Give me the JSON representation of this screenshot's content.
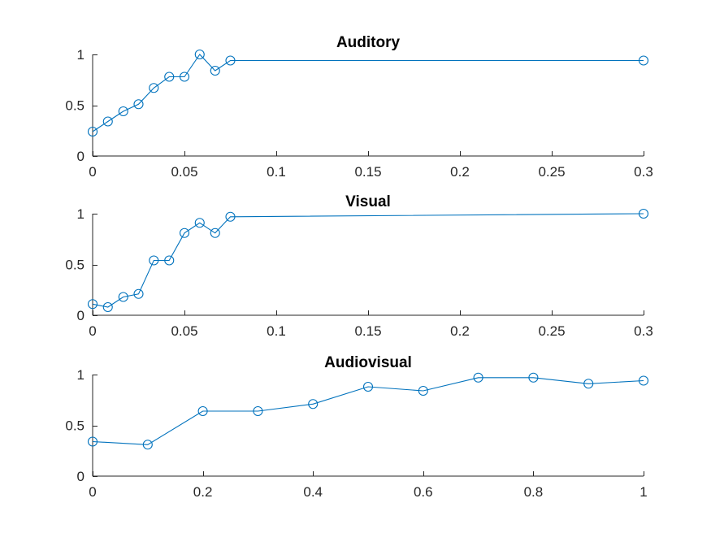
{
  "colors": {
    "series": "#0072BD",
    "axis": "#262626",
    "background": "#ffffff"
  },
  "chart_data": [
    {
      "type": "line",
      "title": "Auditory",
      "xlim": [
        0,
        0.3
      ],
      "ylim": [
        0,
        1
      ],
      "xticks": [
        0,
        0.05,
        0.1,
        0.15,
        0.2,
        0.25,
        0.3
      ],
      "xtick_labels": [
        "0",
        "0.05",
        "0.1",
        "0.15",
        "0.2",
        "0.25",
        "0.3"
      ],
      "yticks": [
        0,
        0.5,
        1
      ],
      "ytick_labels": [
        "0",
        "0.5",
        "1"
      ],
      "grid": false,
      "marker": "circle",
      "series": [
        {
          "x": [
            0,
            0.0083,
            0.0167,
            0.025,
            0.0333,
            0.0417,
            0.05,
            0.0583,
            0.0667,
            0.075,
            0.3
          ],
          "y": [
            0.24,
            0.34,
            0.44,
            0.51,
            0.67,
            0.78,
            0.78,
            1.0,
            0.84,
            0.94,
            0.94
          ]
        }
      ]
    },
    {
      "type": "line",
      "title": "Visual",
      "xlim": [
        0,
        0.3
      ],
      "ylim": [
        0,
        1
      ],
      "xticks": [
        0,
        0.05,
        0.1,
        0.15,
        0.2,
        0.25,
        0.3
      ],
      "xtick_labels": [
        "0",
        "0.05",
        "0.1",
        "0.15",
        "0.2",
        "0.25",
        "0.3"
      ],
      "yticks": [
        0,
        0.5,
        1
      ],
      "ytick_labels": [
        "0",
        "0.5",
        "1"
      ],
      "grid": false,
      "marker": "circle",
      "series": [
        {
          "x": [
            0,
            0.0083,
            0.0167,
            0.025,
            0.0333,
            0.0417,
            0.05,
            0.0583,
            0.0667,
            0.075,
            0.3
          ],
          "y": [
            0.11,
            0.08,
            0.18,
            0.21,
            0.54,
            0.54,
            0.81,
            0.91,
            0.81,
            0.97,
            1.0
          ]
        }
      ]
    },
    {
      "type": "line",
      "title": "Audiovisual",
      "xlim": [
        0,
        1
      ],
      "ylim": [
        0,
        1
      ],
      "xticks": [
        0,
        0.2,
        0.4,
        0.6,
        0.8,
        1
      ],
      "xtick_labels": [
        "0",
        "0.2",
        "0.4",
        "0.6",
        "0.8",
        "1"
      ],
      "yticks": [
        0,
        0.5,
        1
      ],
      "ytick_labels": [
        "0",
        "0.5",
        "1"
      ],
      "grid": false,
      "marker": "circle",
      "series": [
        {
          "x": [
            0,
            0.1,
            0.2,
            0.3,
            0.4,
            0.5,
            0.6,
            0.7,
            0.8,
            0.9,
            1.0
          ],
          "y": [
            0.34,
            0.31,
            0.64,
            0.64,
            0.71,
            0.88,
            0.84,
            0.97,
            0.97,
            0.91,
            0.94
          ]
        }
      ]
    }
  ]
}
